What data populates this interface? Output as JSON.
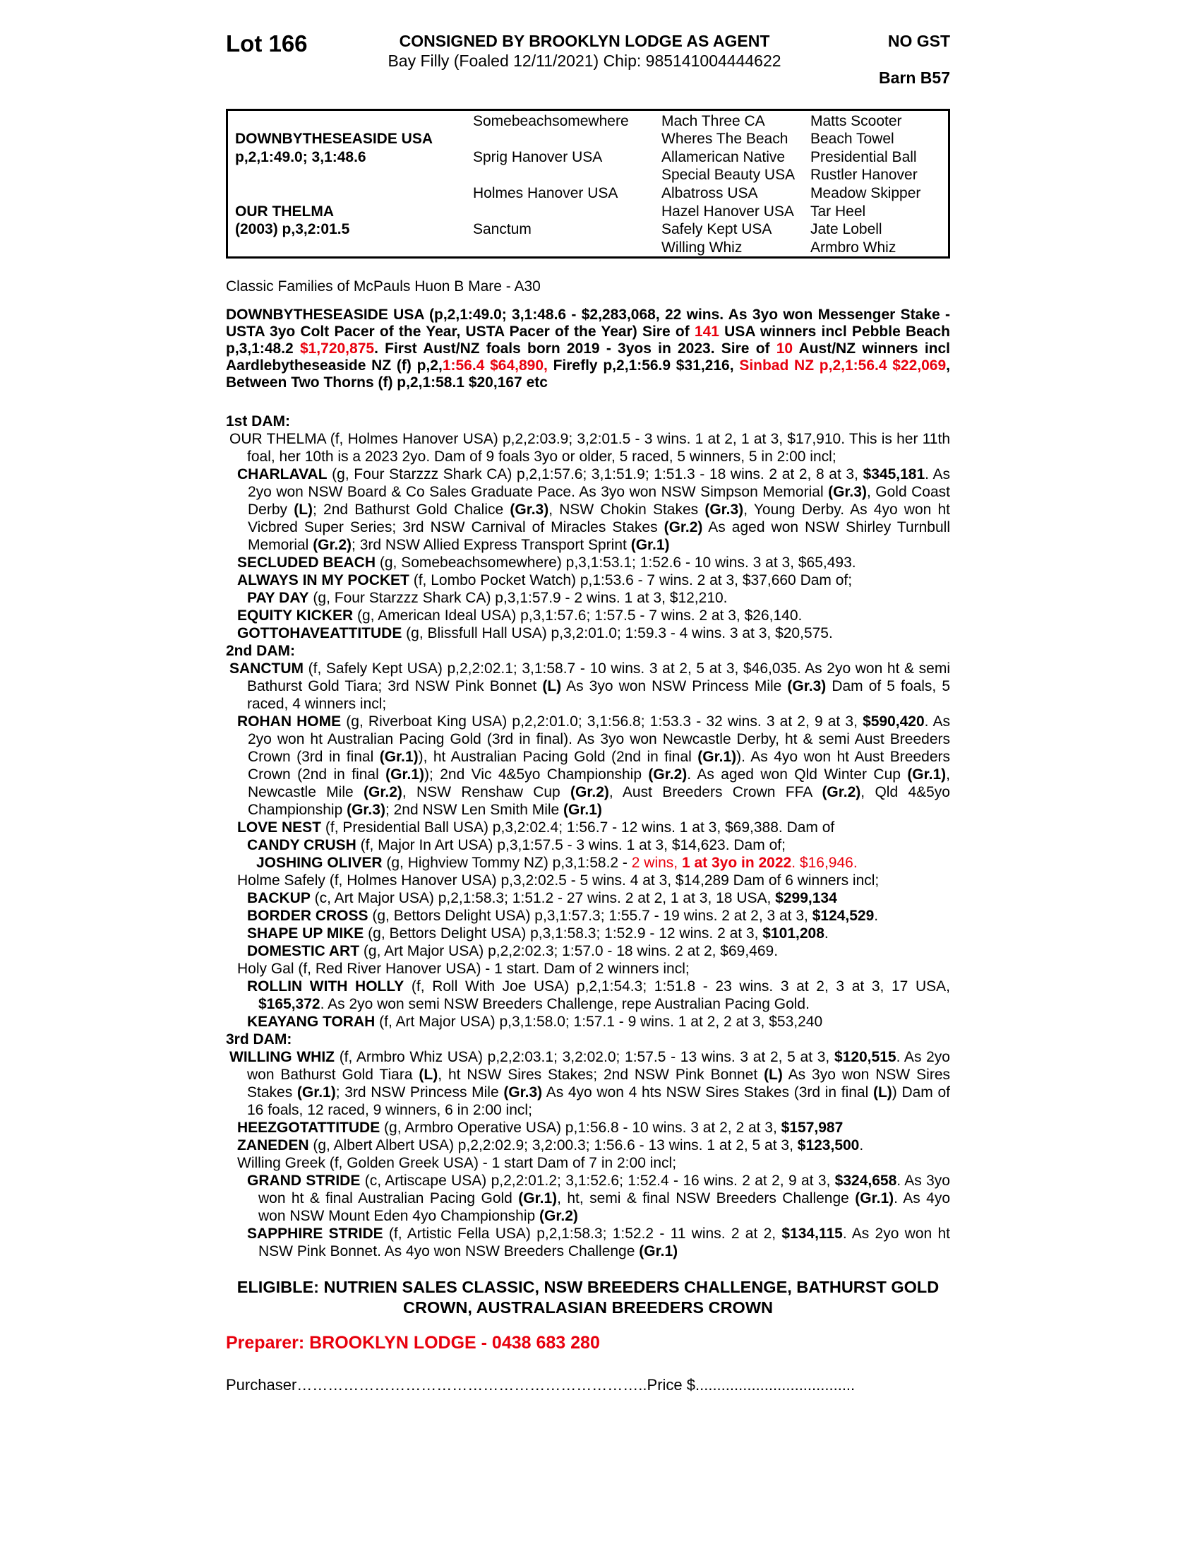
{
  "colors": {
    "accent_red": "#e8000d"
  },
  "page": {
    "lot": "Lot 166",
    "consigned": "CONSIGNED BY BROOKLYN LODGE AS AGENT",
    "no_gst": "NO GST",
    "foal_line": "Bay Filly (Foaled 12/11/2021) Chip: 985141004444622",
    "barn": "Barn B57"
  },
  "pedigree": {
    "rows": [
      [
        "",
        "Somebeachsomewhere",
        "Mach Three CA",
        "Matts Scooter"
      ],
      [
        "DOWNBYTHESEASIDE USA",
        "",
        "Wheres The Beach",
        "Beach Towel"
      ],
      [
        "p,2,1:49.0; 3,1:48.6",
        "Sprig Hanover USA",
        "Allamerican Native",
        "Presidential Ball"
      ],
      [
        "",
        "",
        "Special Beauty USA",
        "Rustler Hanover"
      ],
      [
        "",
        "Holmes Hanover USA",
        "Albatross USA",
        "Meadow Skipper"
      ],
      [
        "OUR THELMA",
        "",
        "Hazel Hanover USA",
        "Tar Heel"
      ],
      [
        "(2003) p,3,2:01.5",
        "Sanctum",
        "Safely Kept USA",
        "Jate Lobell"
      ],
      [
        "",
        "",
        "Willing Whiz",
        "Armbro Whiz"
      ]
    ]
  },
  "classic_families": "Classic Families of McPauls Huon B Mare - A30",
  "sire_paragraph": [
    {
      "t": "DOWNBYTHESEASIDE USA (p,2,1:49.0; 3,1:48.6 - $2,283,068, 22 wins. As 3yo won Messenger Stake - USTA 3yo Colt Pacer of the Year, USTA Pacer of the Year) Sire of ",
      "b": true
    },
    {
      "t": "141",
      "b": true,
      "r": true
    },
    {
      "t": " USA winners incl Pebble Beach p,3,1:48.2 ",
      "b": true
    },
    {
      "t": "$1,720,875",
      "b": true,
      "r": true
    },
    {
      "t": ". First Aust/NZ foals born 2019 - 3yos in 2023. Sire of ",
      "b": true
    },
    {
      "t": "10",
      "b": true,
      "r": true
    },
    {
      "t": " Aust/NZ winners incl Aardlebytheseaside NZ (f) p,2,",
      "b": true
    },
    {
      "t": "1:56.4 $64,890,",
      "b": true,
      "r": true
    },
    {
      "t": " Firefly p,2,1:56.9 $31,216, ",
      "b": true
    },
    {
      "t": "Sinbad NZ p,2,1:56.4 $22,069",
      "b": true,
      "r": true
    },
    {
      "t": ", Between Two Thorns (f) p,2,1:58.1 $20,167 etc",
      "b": true
    }
  ],
  "sections": [
    {
      "header": "1st DAM:",
      "entries": [
        {
          "lv": 0,
          "runs": [
            {
              "t": "OUR THELMA (f, Holmes Hanover USA) p,2,2:03.9; 3,2:01.5 - 3 wins. 1 at 2, 1 at 3, $17,910. This is her 11th foal, her 10th is a 2023 2yo. Dam of 9 foals 3yo or older, 5 raced, 5 winners, 5 in 2:00 incl;"
            }
          ]
        },
        {
          "lv": 1,
          "runs": [
            {
              "t": "CHARLAVAL",
              "b": true
            },
            {
              "t": " (g, Four Starzzz Shark CA) p,2,1:57.6; 3,1:51.9; 1:51.3 - 18 wins. 2 at 2, 8 at 3, "
            },
            {
              "t": "$345,181",
              "b": true
            },
            {
              "t": ". As 2yo won NSW Board & Co Sales Graduate Pace. As 3yo won NSW Simpson Memorial "
            },
            {
              "t": "(Gr.3)",
              "b": true
            },
            {
              "t": ", Gold Coast Derby "
            },
            {
              "t": "(L)",
              "b": true
            },
            {
              "t": "; 2nd Bathurst Gold Chalice "
            },
            {
              "t": "(Gr.3)",
              "b": true
            },
            {
              "t": ", NSW Chokin Stakes "
            },
            {
              "t": "(Gr.3)",
              "b": true
            },
            {
              "t": ", Young Derby. As 4yo won ht Vicbred Super Series; 3rd NSW Carnival of Miracles Stakes "
            },
            {
              "t": "(Gr.2)",
              "b": true
            },
            {
              "t": " As aged won NSW Shirley Turnbull Memorial "
            },
            {
              "t": "(Gr.2)",
              "b": true
            },
            {
              "t": "; 3rd NSW Allied Express Transport Sprint "
            },
            {
              "t": "(Gr.1)",
              "b": true
            }
          ]
        },
        {
          "lv": 1,
          "runs": [
            {
              "t": "SECLUDED BEACH",
              "b": true
            },
            {
              "t": " (g, Somebeachsomewhere) p,3,1:53.1; 1:52.6 - 10 wins. 3 at 3, $65,493."
            }
          ]
        },
        {
          "lv": 1,
          "runs": [
            {
              "t": "ALWAYS IN MY POCKET",
              "b": true
            },
            {
              "t": " (f, Lombo Pocket Watch) p,1:53.6 - 7 wins. 2 at 3, $37,660 Dam of;"
            }
          ]
        },
        {
          "lv": 2,
          "runs": [
            {
              "t": "PAY DAY",
              "b": true
            },
            {
              "t": " (g, Four Starzzz Shark CA) p,3,1:57.9 - 2 wins. 1 at 3, $12,210."
            }
          ]
        },
        {
          "lv": 1,
          "runs": [
            {
              "t": "EQUITY KICKER",
              "b": true
            },
            {
              "t": " (g, American Ideal USA) p,3,1:57.6; 1:57.5 - 7 wins. 2 at 3, $26,140."
            }
          ]
        },
        {
          "lv": 1,
          "runs": [
            {
              "t": "GOTTOHAVEATTITUDE",
              "b": true
            },
            {
              "t": " (g, Blissfull Hall USA) p,3,2:01.0; 1:59.3 - 4 wins. 3 at 3, $20,575."
            }
          ]
        }
      ]
    },
    {
      "header": "2nd DAM:",
      "entries": [
        {
          "lv": 0,
          "runs": [
            {
              "t": "SANCTUM",
              "b": true
            },
            {
              "t": " (f, Safely Kept USA) p,2,2:02.1; 3,1:58.7 - 10 wins. 3 at 2, 5 at 3, $46,035. As 2yo won ht & semi Bathurst Gold Tiara; 3rd NSW Pink Bonnet "
            },
            {
              "t": "(L)",
              "b": true
            },
            {
              "t": " As 3yo won NSW Princess Mile "
            },
            {
              "t": "(Gr.3)",
              "b": true
            },
            {
              "t": " Dam of 5 foals, 5 raced, 4 winners incl;"
            }
          ]
        },
        {
          "lv": 1,
          "runs": [
            {
              "t": "ROHAN HOME",
              "b": true
            },
            {
              "t": " (g, Riverboat King USA) p,2,2:01.0; 3,1:56.8; 1:53.3 - 32 wins. 3 at 2, 9 at 3, "
            },
            {
              "t": "$590,420",
              "b": true
            },
            {
              "t": ". As 2yo won ht Australian Pacing Gold (3rd in final). As 3yo won Newcastle Derby, ht & semi Aust Breeders Crown (3rd in final "
            },
            {
              "t": "(Gr.1)",
              "b": true
            },
            {
              "t": "), ht Australian Pacing Gold (2nd in final "
            },
            {
              "t": "(Gr.1)",
              "b": true
            },
            {
              "t": "). As 4yo won ht Aust Breeders Crown (2nd in final "
            },
            {
              "t": "(Gr.1)",
              "b": true
            },
            {
              "t": "); 2nd Vic 4&5yo Championship "
            },
            {
              "t": "(Gr.2)",
              "b": true
            },
            {
              "t": ". As aged won Qld Winter Cup "
            },
            {
              "t": "(Gr.1)",
              "b": true
            },
            {
              "t": ", Newcastle Mile "
            },
            {
              "t": "(Gr.2)",
              "b": true
            },
            {
              "t": ", NSW Renshaw Cup "
            },
            {
              "t": "(Gr.2)",
              "b": true
            },
            {
              "t": ", Aust Breeders Crown FFA "
            },
            {
              "t": "(Gr.2)",
              "b": true
            },
            {
              "t": ", Qld 4&5yo Championship "
            },
            {
              "t": "(Gr.3)",
              "b": true
            },
            {
              "t": "; 2nd NSW Len Smith Mile "
            },
            {
              "t": "(Gr.1)",
              "b": true
            }
          ]
        },
        {
          "lv": 1,
          "runs": [
            {
              "t": "LOVE NEST",
              "b": true
            },
            {
              "t": " (f, Presidential Ball USA) p,3,2:02.4; 1:56.7 - 12 wins. 1 at 3, $69,388. Dam of"
            }
          ]
        },
        {
          "lv": 2,
          "runs": [
            {
              "t": "CANDY CRUSH",
              "b": true
            },
            {
              "t": " (f, Major In Art USA) p,3,1:57.5 - 3 wins. 1 at 3, $14,623. Dam of;"
            }
          ]
        },
        {
          "lv": 3,
          "runs": [
            {
              "t": "JOSHING OLIVER",
              "b": true
            },
            {
              "t": " (g, Highview Tommy NZ) p,3,1:58.2 - "
            },
            {
              "t": "2 wins, ",
              "r": true
            },
            {
              "t": "1 at 3yo in 2022",
              "b": true,
              "r": true
            },
            {
              "t": ". $16,946.",
              "r": true
            }
          ]
        },
        {
          "lv": 1,
          "runs": [
            {
              "t": "Holme Safely (f, Holmes Hanover USA) p,3,2:02.5 - 5 wins. 4 at 3, $14,289 Dam of 6 winners incl;"
            }
          ]
        },
        {
          "lv": 2,
          "runs": [
            {
              "t": "BACKUP",
              "b": true
            },
            {
              "t": " (c, Art Major USA) p,2,1:58.3; 1:51.2 - 27 wins. 2 at 2, 1 at 3, 18 USA, "
            },
            {
              "t": "$299,134",
              "b": true
            }
          ]
        },
        {
          "lv": 2,
          "runs": [
            {
              "t": "BORDER CROSS",
              "b": true
            },
            {
              "t": " (g, Bettors Delight USA) p,3,1:57.3; 1:55.7 - 19 wins. 2 at 2, 3 at 3, "
            },
            {
              "t": "$124,529",
              "b": true
            },
            {
              "t": "."
            }
          ]
        },
        {
          "lv": 2,
          "runs": [
            {
              "t": "SHAPE UP MIKE",
              "b": true
            },
            {
              "t": " (g, Bettors Delight USA) p,3,1:58.3; 1:52.9 - 12 wins. 2 at 3, "
            },
            {
              "t": "$101,208",
              "b": true
            },
            {
              "t": "."
            }
          ]
        },
        {
          "lv": 2,
          "runs": [
            {
              "t": "DOMESTIC ART",
              "b": true
            },
            {
              "t": " (g, Art Major USA) p,2,2:02.3; 1:57.0 - 18 wins. 2 at 2, $69,469."
            }
          ]
        },
        {
          "lv": 1,
          "runs": [
            {
              "t": "Holy Gal (f, Red River Hanover USA) - 1 start. Dam of 2 winners incl;"
            }
          ]
        },
        {
          "lv": 2,
          "runs": [
            {
              "t": "ROLLIN WITH HOLLY",
              "b": true
            },
            {
              "t": " (f, Roll With Joe USA) p,2,1:54.3; 1:51.8 - 23 wins. 3 at 2, 3 at 3, 17 USA, "
            },
            {
              "t": "$165,372",
              "b": true
            },
            {
              "t": ". As 2yo won semi NSW Breeders Challenge, repe Australian Pacing Gold."
            }
          ]
        },
        {
          "lv": 2,
          "runs": [
            {
              "t": "KEAYANG TORAH",
              "b": true
            },
            {
              "t": " (f, Art Major USA) p,3,1:58.0; 1:57.1 - 9 wins. 1 at 2, 2 at 3, $53,240"
            }
          ]
        }
      ]
    },
    {
      "header": "3rd DAM:",
      "entries": [
        {
          "lv": 0,
          "runs": [
            {
              "t": "WILLING WHIZ",
              "b": true
            },
            {
              "t": " (f, Armbro Whiz USA) p,2,2:03.1; 3,2:02.0; 1:57.5 - 13 wins. 3 at 2, 5 at 3, "
            },
            {
              "t": "$120,515",
              "b": true
            },
            {
              "t": ". As 2yo won Bathurst Gold Tiara "
            },
            {
              "t": "(L)",
              "b": true
            },
            {
              "t": ", ht NSW Sires Stakes; 2nd NSW Pink Bonnet "
            },
            {
              "t": "(L)",
              "b": true
            },
            {
              "t": " As 3yo won NSW Sires Stakes "
            },
            {
              "t": "(Gr.1)",
              "b": true
            },
            {
              "t": "; 3rd NSW Princess Mile "
            },
            {
              "t": "(Gr.3)",
              "b": true
            },
            {
              "t": " As 4yo won 4 hts NSW Sires Stakes (3rd in final "
            },
            {
              "t": "(L)",
              "b": true
            },
            {
              "t": ") Dam of 16 foals, 12 raced, 9 winners, 6 in 2:00 incl;"
            }
          ]
        },
        {
          "lv": 1,
          "runs": [
            {
              "t": "HEEZGOTATTITUDE",
              "b": true
            },
            {
              "t": " (g, Armbro Operative USA) p,1:56.8 - 10 wins. 3 at 2, 2 at 3, "
            },
            {
              "t": "$157,987",
              "b": true
            }
          ]
        },
        {
          "lv": 1,
          "runs": [
            {
              "t": "ZANEDEN",
              "b": true
            },
            {
              "t": " (g, Albert Albert USA) p,2,2:02.9; 3,2:00.3; 1:56.6 - 13 wins. 1 at 2, 5 at 3, "
            },
            {
              "t": "$123,500",
              "b": true
            },
            {
              "t": "."
            }
          ]
        },
        {
          "lv": 1,
          "runs": [
            {
              "t": "Willing Greek (f, Golden Greek USA) - 1 start Dam of 7 in 2:00 incl;"
            }
          ]
        },
        {
          "lv": 2,
          "runs": [
            {
              "t": "GRAND STRIDE",
              "b": true
            },
            {
              "t": " (c, Artiscape USA) p,2,2:01.2; 3,1:52.6; 1:52.4 - 16 wins. 2 at 2, 9 at 3, "
            },
            {
              "t": "$324,658",
              "b": true
            },
            {
              "t": ". As 3yo won ht & final Australian Pacing Gold "
            },
            {
              "t": "(Gr.1)",
              "b": true
            },
            {
              "t": ", ht, semi & final NSW Breeders Challenge "
            },
            {
              "t": "(Gr.1)",
              "b": true
            },
            {
              "t": ". As 4yo won NSW Mount Eden 4yo Championship "
            },
            {
              "t": "(Gr.2)",
              "b": true
            }
          ]
        },
        {
          "lv": 2,
          "runs": [
            {
              "t": "SAPPHIRE STRIDE",
              "b": true
            },
            {
              "t": " (f, Artistic Fella USA) p,2,1:58.3; 1:52.2 - 11 wins. 2 at 2, "
            },
            {
              "t": "$134,115",
              "b": true
            },
            {
              "t": ". As 2yo won ht NSW Pink Bonnet. As 4yo won NSW Breeders Challenge "
            },
            {
              "t": "(Gr.1)",
              "b": true
            }
          ]
        }
      ]
    }
  ],
  "eligible": "ELIGIBLE: NUTRIEN SALES CLASSIC, NSW BREEDERS CHALLENGE, BATHURST GOLD CROWN, AUSTRALASIAN BREEDERS CROWN",
  "preparer": "Preparer: BROOKLYN LODGE - 0438 683 280",
  "purchaser": {
    "label": "Purchaser",
    "dots1": "…………………………………………………………..",
    "price_label": "Price $",
    "dots2": "....................................."
  }
}
